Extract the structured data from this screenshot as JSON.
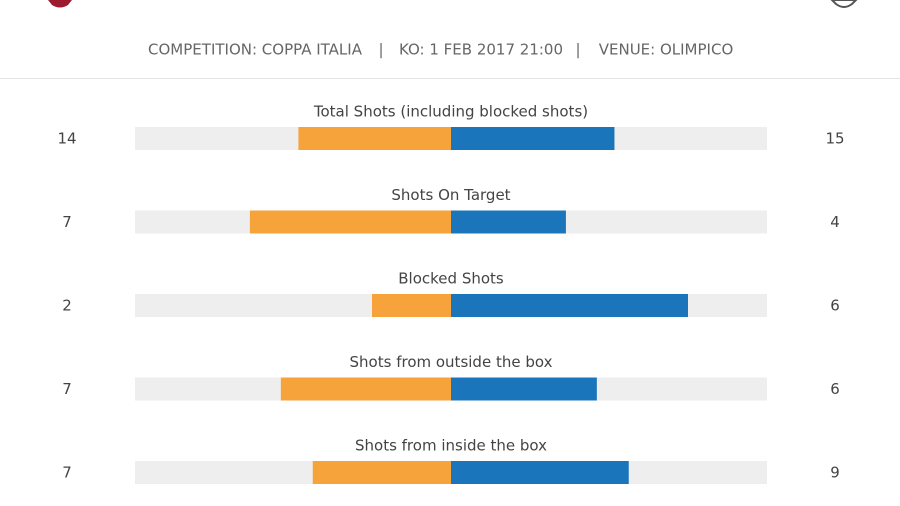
{
  "header": {
    "competition": "COMPETITION: COPPA ITALIA",
    "kickoff": "KO: 1 FEB 2017 21:00",
    "venue": "VENUE: OLIMPICO",
    "separator": "|"
  },
  "colors": {
    "home": "#f6a33c",
    "away": "#1b75bb",
    "track": "#eeeeee"
  },
  "stats": [
    {
      "label": "Total Shots (including blocked shots)",
      "home": 14,
      "away": 15
    },
    {
      "label": "Shots On Target",
      "home": 7,
      "away": 4
    },
    {
      "label": "Blocked Shots",
      "home": 2,
      "away": 6
    },
    {
      "label": "Shots from outside the box",
      "home": 7,
      "away": 6
    },
    {
      "label": "Shots from inside the box",
      "home": 7,
      "away": 9
    }
  ]
}
